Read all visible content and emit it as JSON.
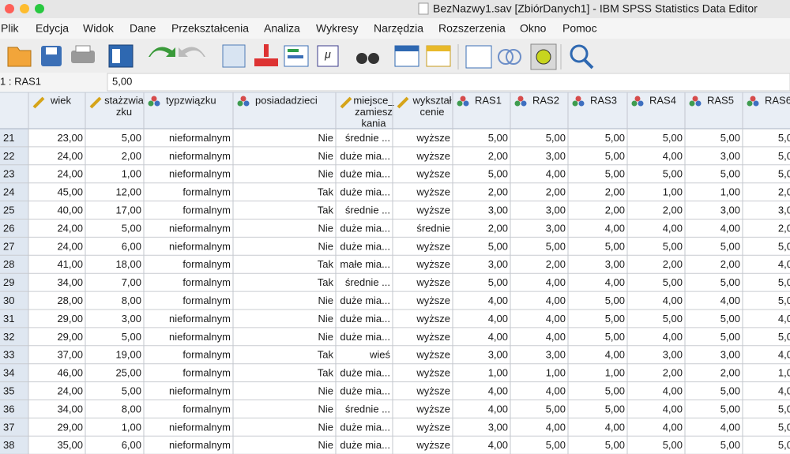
{
  "window": {
    "title": "BezNazwy1.sav [ZbiórDanych1] - IBM SPSS Statistics Data Editor"
  },
  "menu": [
    "Plik",
    "Edycja",
    "Widok",
    "Dane",
    "Przekształcenia",
    "Analiza",
    "Wykresy",
    "Narzędzia",
    "Rozszerzenia",
    "Okno",
    "Pomoc"
  ],
  "cell_editor": {
    "reference": "1 : RAS1",
    "value": "5,00"
  },
  "table": {
    "columns": [
      [
        "wiek"
      ],
      [
        "stażzwia",
        "zku"
      ],
      [
        "typzwiązku"
      ],
      [
        "posiadadzieci"
      ],
      [
        "miejsce_",
        "zamiesz",
        "kania"
      ],
      [
        "wykształ",
        "cenie"
      ],
      [
        "RAS1"
      ],
      [
        "RAS2"
      ],
      [
        "RAS3"
      ],
      [
        "RAS4"
      ],
      [
        "RAS5"
      ],
      [
        "RAS6"
      ]
    ],
    "rows": [
      [
        "21",
        "23,00",
        "5,00",
        "nieformalnym",
        "Nie",
        "średnie ...",
        "wyższe",
        "5,00",
        "5,00",
        "5,00",
        "5,00",
        "5,00",
        "5,0"
      ],
      [
        "22",
        "24,00",
        "2,00",
        "nieformalnym",
        "Nie",
        "duże mia...",
        "wyższe",
        "2,00",
        "3,00",
        "5,00",
        "4,00",
        "3,00",
        "5,0"
      ],
      [
        "23",
        "24,00",
        "1,00",
        "nieformalnym",
        "Nie",
        "duże mia...",
        "wyższe",
        "5,00",
        "4,00",
        "5,00",
        "5,00",
        "5,00",
        "5,0"
      ],
      [
        "24",
        "45,00",
        "12,00",
        "formalnym",
        "Tak",
        "duże mia...",
        "wyższe",
        "2,00",
        "2,00",
        "2,00",
        "1,00",
        "1,00",
        "2,0"
      ],
      [
        "25",
        "40,00",
        "17,00",
        "formalnym",
        "Tak",
        "średnie ...",
        "wyższe",
        "3,00",
        "3,00",
        "2,00",
        "2,00",
        "3,00",
        "3,0"
      ],
      [
        "26",
        "24,00",
        "5,00",
        "nieformalnym",
        "Nie",
        "duże mia...",
        "średnie",
        "2,00",
        "3,00",
        "4,00",
        "4,00",
        "4,00",
        "2,0"
      ],
      [
        "27",
        "24,00",
        "6,00",
        "nieformalnym",
        "Nie",
        "duże mia...",
        "wyższe",
        "5,00",
        "5,00",
        "5,00",
        "5,00",
        "5,00",
        "5,0"
      ],
      [
        "28",
        "41,00",
        "18,00",
        "formalnym",
        "Tak",
        "małe mia...",
        "wyższe",
        "3,00",
        "2,00",
        "3,00",
        "2,00",
        "2,00",
        "4,0"
      ],
      [
        "29",
        "34,00",
        "7,00",
        "formalnym",
        "Tak",
        "średnie ...",
        "wyższe",
        "5,00",
        "4,00",
        "4,00",
        "5,00",
        "5,00",
        "5,0"
      ],
      [
        "30",
        "28,00",
        "8,00",
        "formalnym",
        "Nie",
        "duże mia...",
        "wyższe",
        "4,00",
        "4,00",
        "5,00",
        "4,00",
        "4,00",
        "5,0"
      ],
      [
        "31",
        "29,00",
        "3,00",
        "nieformalnym",
        "Nie",
        "duże mia...",
        "wyższe",
        "4,00",
        "4,00",
        "5,00",
        "5,00",
        "5,00",
        "4,0"
      ],
      [
        "32",
        "29,00",
        "5,00",
        "nieformalnym",
        "Nie",
        "duże mia...",
        "wyższe",
        "4,00",
        "4,00",
        "5,00",
        "4,00",
        "5,00",
        "5,0"
      ],
      [
        "33",
        "37,00",
        "19,00",
        "formalnym",
        "Tak",
        "wieś",
        "wyższe",
        "3,00",
        "3,00",
        "4,00",
        "3,00",
        "3,00",
        "4,0"
      ],
      [
        "34",
        "46,00",
        "25,00",
        "formalnym",
        "Tak",
        "duże mia...",
        "wyższe",
        "1,00",
        "1,00",
        "1,00",
        "2,00",
        "2,00",
        "1,0"
      ],
      [
        "35",
        "24,00",
        "5,00",
        "nieformalnym",
        "Nie",
        "duże mia...",
        "wyższe",
        "4,00",
        "4,00",
        "5,00",
        "4,00",
        "5,00",
        "4,0"
      ],
      [
        "36",
        "34,00",
        "8,00",
        "formalnym",
        "Nie",
        "średnie ...",
        "wyższe",
        "4,00",
        "5,00",
        "5,00",
        "4,00",
        "5,00",
        "5,0"
      ],
      [
        "37",
        "29,00",
        "1,00",
        "nieformalnym",
        "Nie",
        "duże mia...",
        "wyższe",
        "3,00",
        "4,00",
        "4,00",
        "4,00",
        "4,00",
        "5,0"
      ],
      [
        "38",
        "35,00",
        "6,00",
        "nieformalnym",
        "Nie",
        "duże mia...",
        "wyższe",
        "4,00",
        "5,00",
        "5,00",
        "5,00",
        "5,00",
        "5,0"
      ]
    ]
  }
}
